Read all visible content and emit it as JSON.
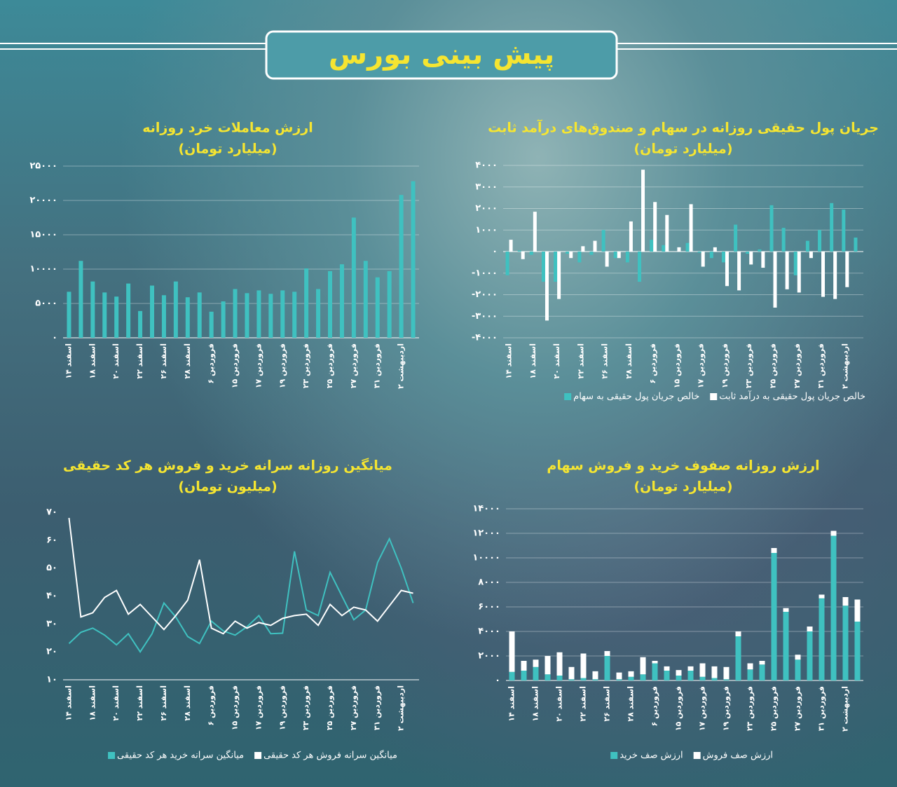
{
  "title": "پیش بینی بورس",
  "chart_data": [
    {
      "type": "bar",
      "title": "ارزش معاملات خرد روزانه",
      "subtitle": "(میلیارد تومان)",
      "categories": [
        "اسفند ۱۴",
        null,
        "اسفند ۱۸",
        null,
        "اسفند ۲۰",
        null,
        "اسفند ۲۲",
        null,
        "اسفند ۲۶",
        null,
        "اسفند ۲۸",
        null,
        "فروردین ۶",
        null,
        "فروردین ۱۵",
        null,
        "فروردین ۱۷",
        null,
        "فروردین ۱۹",
        null,
        "فروردین ۲۳",
        null,
        "فروردین ۲۵",
        null,
        "فروردین ۲۷",
        null,
        "فروردین ۳۱",
        null,
        "اردیبهشت ۲",
        null
      ],
      "values": [
        6700,
        11200,
        8200,
        6600,
        6000,
        7900,
        3900,
        7600,
        6200,
        8200,
        5900,
        6600,
        3800,
        5300,
        7100,
        6500,
        6900,
        6400,
        6900,
        6700,
        10100,
        7100,
        9700,
        10700,
        17500,
        11200,
        8800,
        9700,
        20800,
        22800
      ],
      "color": "#3fc1c0",
      "ylim": [
        0,
        25000
      ],
      "yticks": [
        {
          "value": 0,
          "label": "۰"
        },
        {
          "value": 5000,
          "label": "۵۰۰۰"
        },
        {
          "value": 10000,
          "label": "۱۰۰۰۰"
        },
        {
          "value": 15000,
          "label": "۱۵۰۰۰"
        },
        {
          "value": 20000,
          "label": "۲۰۰۰۰"
        },
        {
          "value": 25000,
          "label": "۲۵۰۰۰"
        }
      ],
      "grid": true
    },
    {
      "type": "bar",
      "title": "جریان پول حقیقی روزانه در سهام و صندوق‌های درآمد ثابت",
      "subtitle": "(میلیارد تومان)",
      "categories": [
        "اسفند ۱۴",
        null,
        "اسفند ۱۸",
        null,
        "اسفند ۲۰",
        null,
        "اسفند ۲۲",
        null,
        "اسفند ۲۶",
        null,
        "اسفند ۲۸",
        null,
        "فروردین ۶",
        null,
        "فروردین ۱۵",
        null,
        "فروردین ۱۷",
        null,
        "فروردین ۱۹",
        null,
        "فروردین ۲۳",
        null,
        "فروردین ۲۵",
        null,
        "فروردین ۲۷",
        null,
        "فروردین ۳۱",
        null,
        "اردیبهشت ۲",
        null
      ],
      "series": [
        {
          "name": "خالص جریان پول حقیقی به سهام",
          "color": "#3fc1c0",
          "values": [
            -1100,
            50,
            -150,
            -1400,
            -1400,
            -100,
            -500,
            -150,
            1000,
            -300,
            -500,
            -1400,
            550,
            300,
            0,
            400,
            -50,
            -300,
            -500,
            1250,
            -100,
            100,
            2150,
            1100,
            -1100,
            500,
            1000,
            2250,
            1950,
            650
          ]
        },
        {
          "name": "خالص جریان پول حقیقی به درآمد ثابت",
          "color": "#ffffff",
          "values": [
            550,
            -350,
            1850,
            -3200,
            -2200,
            -300,
            250,
            500,
            -700,
            -300,
            1400,
            3800,
            2300,
            1700,
            200,
            2200,
            -700,
            200,
            -1600,
            -1800,
            -600,
            -750,
            -2600,
            -1750,
            -1900,
            -300,
            -2100,
            -2200,
            -1650,
            null
          ]
        }
      ],
      "ylim": [
        -4000,
        4000
      ],
      "yticks": [
        {
          "value": -4000,
          "label": "-۴۰۰۰"
        },
        {
          "value": -3000,
          "label": "-۳۰۰۰"
        },
        {
          "value": -2000,
          "label": "-۲۰۰۰"
        },
        {
          "value": -1000,
          "label": "-۱۰۰۰"
        },
        {
          "value": 0,
          "label": "۰"
        },
        {
          "value": 1000,
          "label": "۱۰۰۰"
        },
        {
          "value": 2000,
          "label": "۲۰۰۰"
        },
        {
          "value": 3000,
          "label": "۳۰۰۰"
        },
        {
          "value": 4000,
          "label": "۴۰۰۰"
        }
      ],
      "grid": true
    },
    {
      "type": "line",
      "title": "میانگین روزانه سرانه خرید و فروش هر کد حقیقی",
      "subtitle": "(میلیون تومان)",
      "categories": [
        "اسفند ۱۴",
        null,
        "اسفند ۱۸",
        null,
        "اسفند ۲۰",
        null,
        "اسفند ۲۲",
        null,
        "اسفند ۲۶",
        null,
        "اسفند ۲۸",
        null,
        "فروردین ۶",
        null,
        "فروردین ۱۵",
        null,
        "فروردین ۱۷",
        null,
        "فروردین ۱۹",
        null,
        "فروردین ۲۳",
        null,
        "فروردین ۲۵",
        null,
        "فروردین ۲۷",
        null,
        "فروردین ۳۱",
        null,
        "اردیبهشت ۲",
        null
      ],
      "series": [
        {
          "name": "میانگین سرانه خرید هر کد حقیقی",
          "color": "#3fc1c0",
          "values": [
            23,
            27,
            28.5,
            26,
            22.5,
            26.5,
            20,
            26.5,
            37.5,
            32.5,
            25.5,
            23,
            31,
            27.5,
            26,
            29,
            33,
            26.5,
            26.7,
            56,
            35,
            33,
            48.5,
            40,
            31.5,
            35,
            52,
            60.5,
            50,
            37.5
          ]
        },
        {
          "name": "میانگین سرانه فروش هر کد حقیقی",
          "color": "#ffffff",
          "values": [
            68,
            32.5,
            34,
            39.5,
            42,
            33.5,
            37,
            32.5,
            28,
            33,
            38.5,
            53,
            28.5,
            26.5,
            31,
            28.5,
            30.5,
            29.5,
            32,
            33,
            33.5,
            29.5,
            37,
            33,
            36,
            35,
            31,
            36.5,
            42,
            41
          ]
        }
      ],
      "ylim": [
        10,
        70
      ],
      "yticks": [
        {
          "value": 10,
          "label": "۱۰"
        },
        {
          "value": 20,
          "label": "۲۰"
        },
        {
          "value": 30,
          "label": "۳۰"
        },
        {
          "value": 40,
          "label": "۴۰"
        },
        {
          "value": 50,
          "label": "۵۰"
        },
        {
          "value": 60,
          "label": "۶۰"
        },
        {
          "value": 70,
          "label": "۷۰"
        }
      ],
      "grid": false
    },
    {
      "type": "stacked_bar",
      "title": "ارزش روزانه صفوف خرید و فروش سهام",
      "subtitle": "(میلیارد تومان)",
      "categories": [
        "اسفند ۱۴",
        null,
        "اسفند ۱۸",
        null,
        "اسفند ۲۰",
        null,
        "اسفند ۲۲",
        null,
        "اسفند ۲۶",
        null,
        "اسفند ۲۸",
        null,
        "فروردین ۶",
        null,
        "فروردین ۱۵",
        null,
        "فروردین ۱۷",
        null,
        "فروردین ۱۹",
        null,
        "فروردین ۲۳",
        null,
        "فروردین ۲۵",
        null,
        "فروردین ۲۷",
        null,
        "فروردین ۳۱",
        null,
        "اردیبهشت ۲",
        null
      ],
      "series": [
        {
          "name": "ارزش صف خرید",
          "color": "#3fc1c0",
          "values": [
            700,
            800,
            1100,
            500,
            400,
            100,
            200,
            100,
            2000,
            100,
            300,
            500,
            1400,
            800,
            400,
            800,
            300,
            200,
            100,
            3600,
            900,
            1300,
            10400,
            5600,
            1700,
            4000,
            6700,
            11800,
            6100,
            4800
          ]
        },
        {
          "name": "ارزش صف فروش",
          "color": "#ffffff",
          "values": [
            3300,
            800,
            600,
            1500,
            1900,
            1000,
            2000,
            650,
            400,
            550,
            450,
            1400,
            200,
            350,
            450,
            350,
            1100,
            950,
            1000,
            400,
            500,
            300,
            400,
            300,
            400,
            400,
            300,
            400,
            700,
            1800
          ]
        }
      ],
      "ylim": [
        0,
        14000
      ],
      "yticks": [
        {
          "value": 0,
          "label": "۰"
        },
        {
          "value": 2000,
          "label": "۲۰۰۰"
        },
        {
          "value": 4000,
          "label": "۴۰۰۰"
        },
        {
          "value": 6000,
          "label": "۶۰۰۰"
        },
        {
          "value": 8000,
          "label": "۸۰۰۰"
        },
        {
          "value": 10000,
          "label": "۱۰۰۰۰"
        },
        {
          "value": 12000,
          "label": "۱۲۰۰۰"
        },
        {
          "value": 14000,
          "label": "۱۴۰۰۰"
        }
      ],
      "grid": true
    }
  ]
}
